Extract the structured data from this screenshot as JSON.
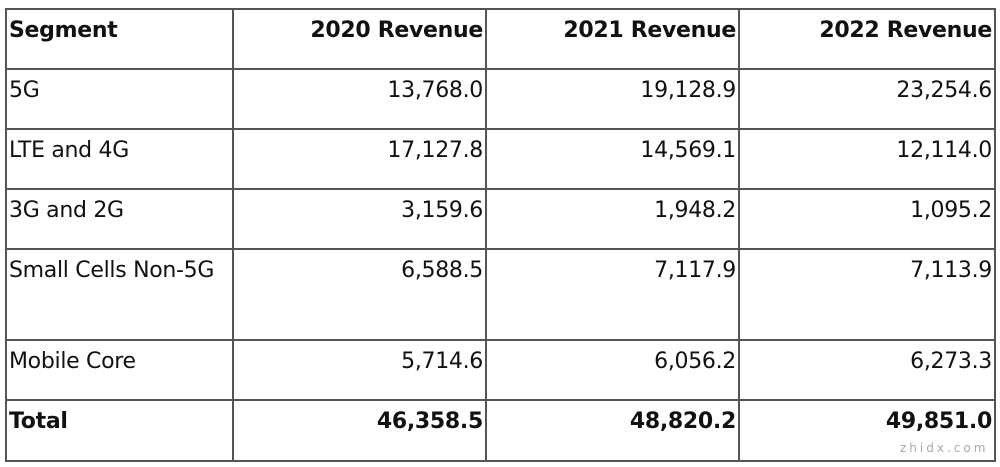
{
  "table": {
    "headers": [
      "Segment",
      "2020 Revenue",
      "2021 Revenue",
      "2022 Revenue"
    ],
    "rows": [
      {
        "segment": "5G",
        "values": [
          "13,768.0",
          "19,128.9",
          "23,254.6"
        ]
      },
      {
        "segment": "LTE and 4G",
        "values": [
          "17,127.8",
          "14,569.1",
          "12,114.0"
        ]
      },
      {
        "segment": "3G and 2G",
        "values": [
          "3,159.6",
          "1,948.2",
          "1,095.2"
        ]
      },
      {
        "segment": "Small Cells Non-5G",
        "values": [
          "6,588.5",
          "7,117.9",
          "7,113.9"
        ]
      },
      {
        "segment": "Mobile Core",
        "values": [
          "5,714.6",
          "6,056.2",
          "6,273.3"
        ]
      }
    ],
    "total": {
      "segment": "Total",
      "values": [
        "46,358.5",
        "48,820.2",
        "49,851.0"
      ]
    }
  },
  "watermark": "zhidx.com"
}
